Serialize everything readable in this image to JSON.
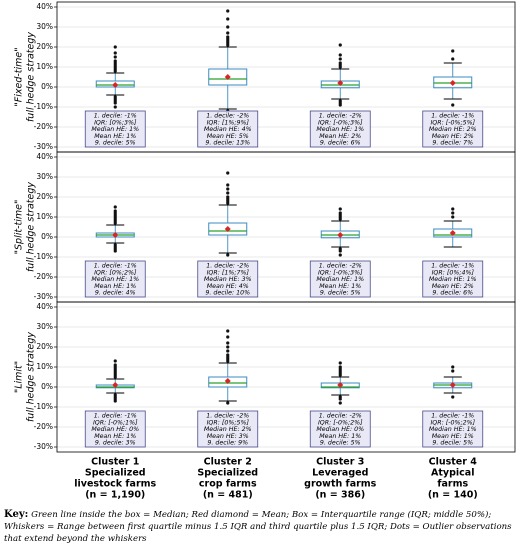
{
  "chart_data": [
    {
      "type": "box",
      "ylabel": [
        "\"Fixed-time\"",
        "full hedge strategy"
      ],
      "ylim": [
        -30,
        40
      ],
      "yticks": [
        {
          "value": -30,
          "label": "-30%"
        },
        {
          "value": -20,
          "label": "-20%"
        },
        {
          "value": -10,
          "label": "-10%"
        },
        {
          "value": 0,
          "label": "0%"
        },
        {
          "value": 10,
          "label": "10%"
        },
        {
          "value": 20,
          "label": "20%"
        },
        {
          "value": 30,
          "label": "30%"
        },
        {
          "value": 40,
          "label": "40%"
        }
      ],
      "grid": true,
      "box_color": "#3b8bc2",
      "median_color": "#2ca02c",
      "mean_color": "#d62728",
      "boxes": [
        {
          "whislo": -4,
          "q1": 0,
          "med": 1,
          "q3": 3,
          "whishi": 7,
          "mean": 1,
          "fliers": [
            8,
            9,
            10,
            11,
            12,
            13,
            15,
            17,
            20,
            -5,
            -6,
            -7,
            -8,
            -10
          ],
          "annotation": [
            "1. decile: -1%",
            "IQR: [0%;3%]",
            "Median HE: 1%",
            "Mean HE: 1%",
            "9. decile: 5%"
          ]
        },
        {
          "whislo": -11,
          "q1": 1,
          "med": 4,
          "q3": 9,
          "whishi": 20,
          "mean": 5,
          "fliers": [
            21,
            22,
            23,
            24,
            25,
            27,
            30,
            34,
            38,
            -12
          ],
          "annotation": [
            "1. decile: -2%",
            "IQR: [1%;9%]",
            "Median HE: 4%",
            "Mean HE: 5%",
            "9. decile: 13%"
          ]
        },
        {
          "whislo": -6,
          "q1": -0.4,
          "med": 1,
          "q3": 3,
          "whishi": 9,
          "mean": 2,
          "fliers": [
            10,
            11,
            12,
            14,
            16,
            21,
            -7,
            -8,
            -9
          ],
          "annotation": [
            "1. decile: -2%",
            "IQR: [-0%;3%]",
            "Median HE: 1%",
            "Mean HE: 2%",
            "9. decile: 6%"
          ]
        },
        {
          "whislo": -6,
          "q1": -0.4,
          "med": 2,
          "q3": 5,
          "whishi": 12,
          "mean": 2,
          "fliers": [
            14,
            18,
            -9
          ],
          "annotation": [
            "1. decile: -1%",
            "IQR: [-0%;5%]",
            "Median HE: 2%",
            "Mean HE: 2%",
            "9. decile: 7%"
          ]
        }
      ]
    },
    {
      "type": "box",
      "ylabel": [
        "\"Split-time\"",
        "full hedge strategy"
      ],
      "ylim": [
        -30,
        40
      ],
      "yticks": [
        {
          "value": -30,
          "label": "-30%"
        },
        {
          "value": -20,
          "label": "-20%"
        },
        {
          "value": -10,
          "label": "-10%"
        },
        {
          "value": 0,
          "label": "0%"
        },
        {
          "value": 10,
          "label": "10%"
        },
        {
          "value": 20,
          "label": "20%"
        },
        {
          "value": 30,
          "label": "30%"
        },
        {
          "value": 40,
          "label": "40%"
        }
      ],
      "grid": true,
      "box_color": "#3b8bc2",
      "median_color": "#2ca02c",
      "mean_color": "#d62728",
      "boxes": [
        {
          "whislo": -3,
          "q1": 0,
          "med": 1,
          "q3": 2,
          "whishi": 6,
          "mean": 1,
          "fliers": [
            7,
            8,
            9,
            10,
            11,
            12,
            13,
            15,
            -4,
            -5,
            -6,
            -7
          ],
          "annotation": [
            "1. decile: -1%",
            "IQR: [0%;2%]",
            "Median HE: 1%",
            "Mean HE: 1%",
            "9. decile: 4%"
          ]
        },
        {
          "whislo": -8,
          "q1": 1,
          "med": 3,
          "q3": 7,
          "whishi": 16,
          "mean": 4,
          "fliers": [
            17,
            18,
            19,
            20,
            22,
            24,
            26,
            32,
            -9
          ],
          "annotation": [
            "1. decile: -2%",
            "IQR: [1%;7%]",
            "Median HE: 3%",
            "Mean HE: 4%",
            "9. decile: 10%"
          ]
        },
        {
          "whislo": -5,
          "q1": -0.4,
          "med": 1,
          "q3": 3,
          "whishi": 8,
          "mean": 1,
          "fliers": [
            9,
            10,
            11,
            12,
            14,
            -6,
            -7,
            -9
          ],
          "annotation": [
            "1. decile: -2%",
            "IQR: [-0%;3%]",
            "Median HE: 1%",
            "Mean HE: 1%",
            "9. decile: 5%"
          ]
        },
        {
          "whislo": -5,
          "q1": 0,
          "med": 1,
          "q3": 4,
          "whishi": 8,
          "mean": 2,
          "fliers": [
            10,
            12,
            14
          ],
          "annotation": [
            "1. decile: -1%",
            "IQR: [0%;4%]",
            "Median HE: 1%",
            "Mean HE: 2%",
            "9. decile: 6%"
          ]
        }
      ]
    },
    {
      "type": "box",
      "ylabel": [
        "\"Limit\"",
        "full hedge strategy"
      ],
      "ylim": [
        -30,
        40
      ],
      "yticks": [
        {
          "value": -30,
          "label": "-30%"
        },
        {
          "value": -20,
          "label": "-20%"
        },
        {
          "value": -10,
          "label": "-10%"
        },
        {
          "value": 0,
          "label": "0%"
        },
        {
          "value": 10,
          "label": "10%"
        },
        {
          "value": 20,
          "label": "20%"
        },
        {
          "value": 30,
          "label": "30%"
        },
        {
          "value": 40,
          "label": "40%"
        }
      ],
      "grid": true,
      "box_color": "#3b8bc2",
      "median_color": "#2ca02c",
      "mean_color": "#d62728",
      "categories": [
        [
          "Cluster 1",
          "Specialized",
          "livestock farms",
          "(n = 1,190)"
        ],
        [
          "Cluster 2",
          "Specialized",
          "crop farms",
          "(n = 481)"
        ],
        [
          "Cluster 3",
          "Leveraged",
          "growth farms",
          "(n = 386)"
        ],
        [
          "Cluster 4",
          "Atypical",
          "farms",
          "(n = 140)"
        ]
      ],
      "boxes": [
        {
          "whislo": -3,
          "q1": -0.4,
          "med": 0,
          "q3": 1,
          "whishi": 4,
          "mean": 1,
          "fliers": [
            5,
            6,
            7,
            8,
            9,
            10,
            11,
            13,
            -4,
            -5,
            -6,
            -7
          ],
          "annotation": [
            "1. decile: -1%",
            "IQR: [-0%;1%]",
            "Median HE: 0%",
            "Mean HE: 1%",
            "9. decile: 3%"
          ]
        },
        {
          "whislo": -7,
          "q1": 0,
          "med": 2,
          "q3": 5,
          "whishi": 12,
          "mean": 3,
          "fliers": [
            13,
            14,
            15,
            16,
            18,
            20,
            22,
            25,
            28,
            -8
          ],
          "annotation": [
            "1. decile: -2%",
            "IQR: [0%;5%]",
            "Median HE: 2%",
            "Mean HE: 3%",
            "9. decile: 9%"
          ]
        },
        {
          "whislo": -4,
          "q1": -0.4,
          "med": 0,
          "q3": 2,
          "whishi": 5,
          "mean": 1,
          "fliers": [
            6,
            7,
            8,
            9,
            10,
            12,
            -5,
            -6,
            -8
          ],
          "annotation": [
            "1. decile: -2%",
            "IQR: [-0%;2%]",
            "Median HE: 0%",
            "Mean HE: 1%",
            "9. decile: 5%"
          ]
        },
        {
          "whislo": -3,
          "q1": -0.4,
          "med": 1,
          "q3": 2,
          "whishi": 5,
          "mean": 1,
          "fliers": [
            8,
            10,
            -5
          ],
          "annotation": [
            "1. decile: -1%",
            "IQR: [-0%;2%]",
            "Median HE: 1%",
            "Mean HE: 1%",
            "9. decile: 5%"
          ]
        }
      ]
    }
  ],
  "key": {
    "label": "Key:",
    "text": "Green line inside the box = Median;   Red diamond = Mean;   Box = Interquartile range (IQR; middle 50%);   Whiskers = Range between first quartile minus 1.5 IQR and third quartile plus 1.5 IQR;   Dots = Outlier observations that extend beyond the whiskers"
  }
}
